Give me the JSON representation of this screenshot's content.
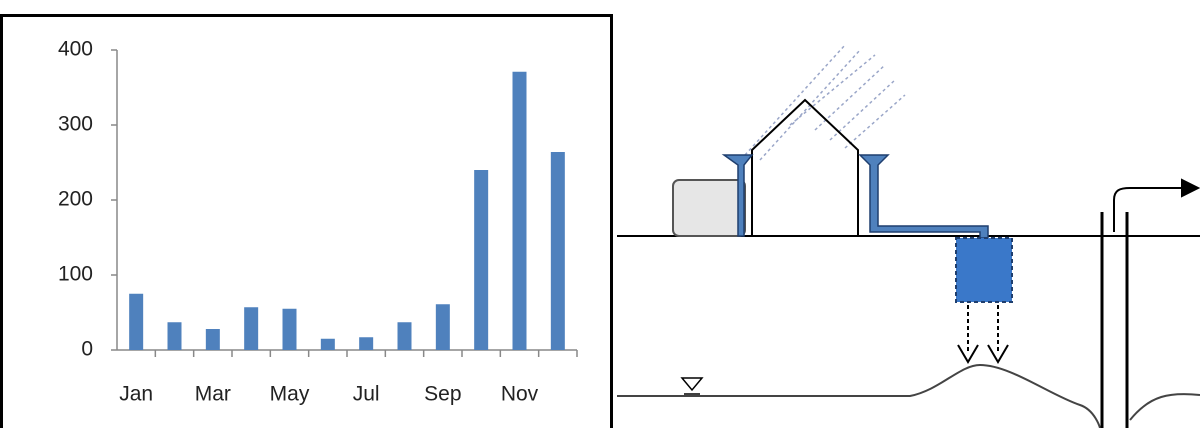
{
  "chart_data": {
    "type": "bar",
    "categories": [
      "Jan",
      null,
      "Mar",
      null,
      "May",
      null,
      "Jul",
      null,
      "Sep",
      null,
      "Nov",
      null
    ],
    "values": [
      75,
      37,
      28,
      57,
      55,
      15,
      17,
      37,
      61,
      240,
      371,
      264
    ],
    "color": "#4f81bd",
    "ylim": [
      0,
      400
    ],
    "yticks": [
      0,
      100,
      200,
      300,
      400
    ],
    "grid": false
  }
}
